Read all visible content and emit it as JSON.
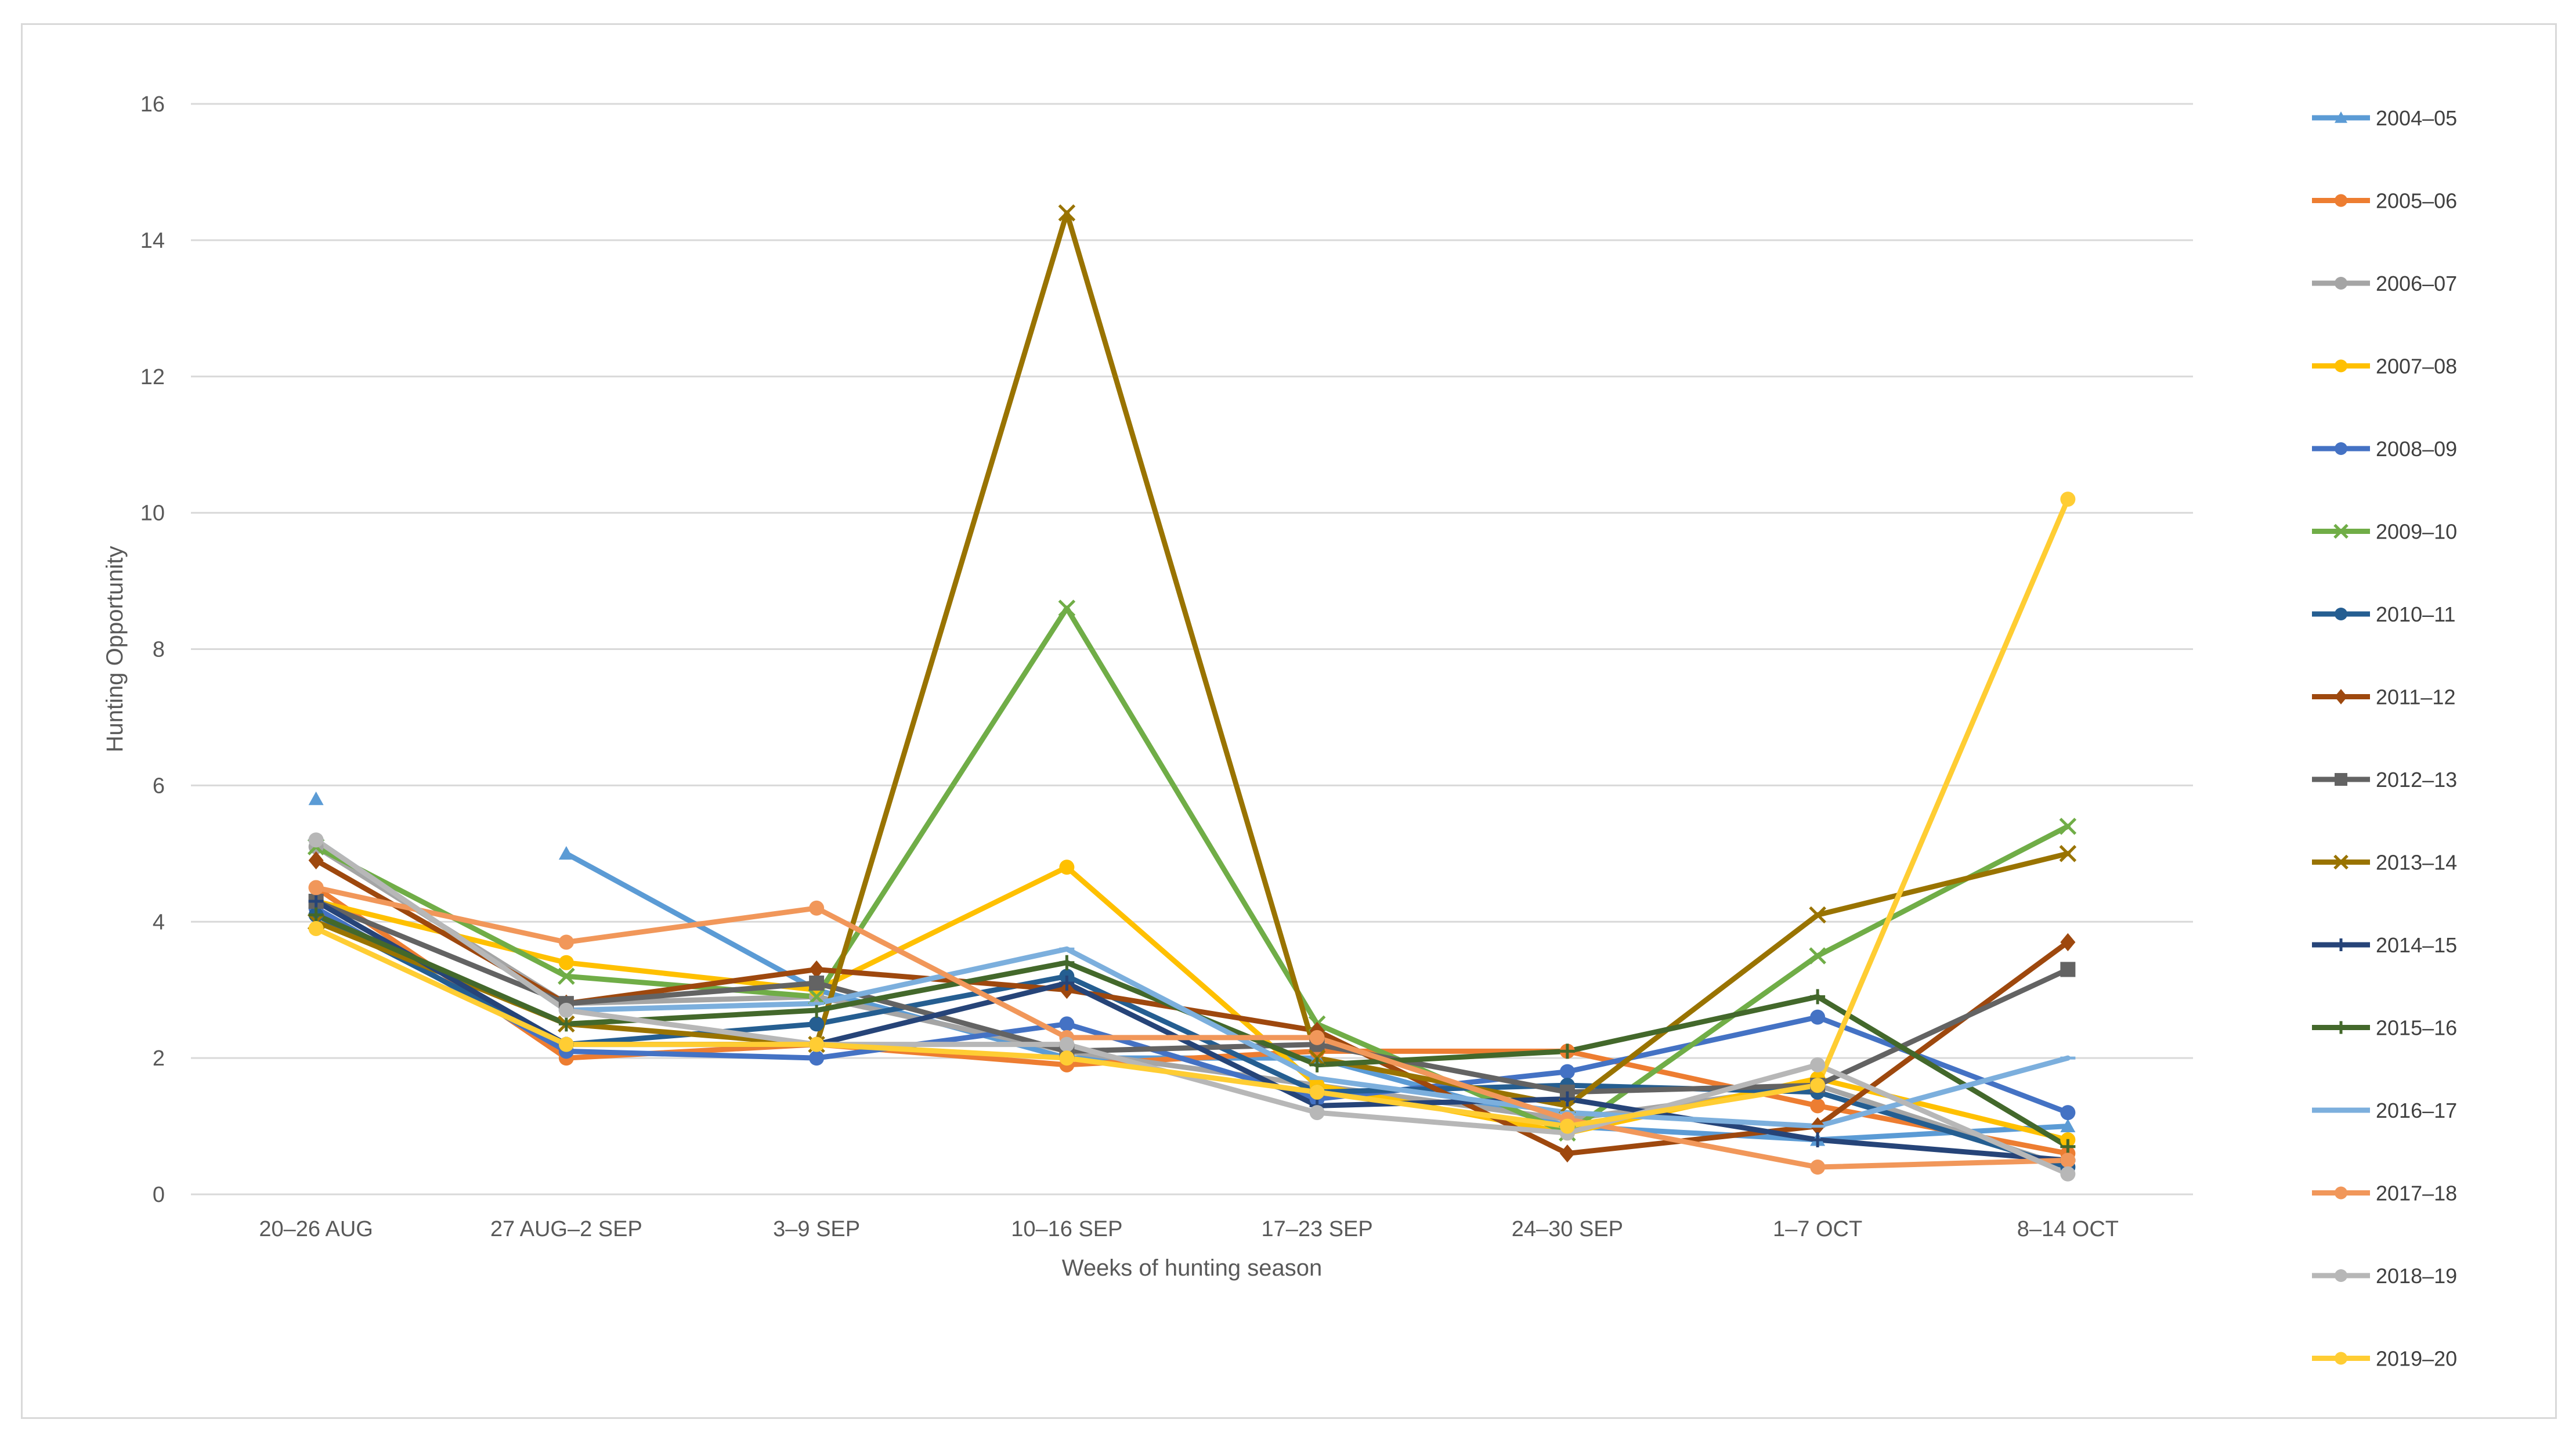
{
  "chart_data": {
    "type": "line",
    "title": "",
    "xlabel": "Weeks of hunting season",
    "ylabel": "Hunting Opportunity",
    "ylim": [
      0,
      16
    ],
    "yticks": [
      0,
      2,
      4,
      6,
      8,
      10,
      12,
      14,
      16
    ],
    "grid": true,
    "legend_position": "right",
    "categories": [
      "20–26 AUG",
      "27 AUG–2 SEP",
      "3–9 SEP",
      "10–16 SEP",
      "17–23 SEP",
      "24–30 SEP",
      "1–7 OCT",
      "8–14 OCT"
    ],
    "series": [
      {
        "name": "2004–05",
        "color": "#5b9bd5",
        "marker": "triangle",
        "values": [
          5.8,
          null,
          3.0,
          2.0,
          2.0,
          1.0,
          0.8,
          1.0
        ],
        "extra_point": {
          "index": 1,
          "value": 5.0
        }
      },
      {
        "name": "2005–06",
        "color": "#ed7d31",
        "marker": "circle",
        "values": [
          4.5,
          2.0,
          2.2,
          1.9,
          2.1,
          2.1,
          1.3,
          0.6
        ]
      },
      {
        "name": "2006–07",
        "color": "#a5a5a5",
        "marker": "circle",
        "values": [
          5.1,
          2.8,
          2.9,
          2.1,
          1.6,
          1.1,
          1.6,
          0.4
        ]
      },
      {
        "name": "2007–08",
        "color": "#ffc000",
        "marker": "circle",
        "values": [
          4.3,
          3.4,
          3.0,
          4.8,
          1.6,
          0.9,
          1.7,
          0.8
        ]
      },
      {
        "name": "2008–09",
        "color": "#4472c4",
        "marker": "circle",
        "values": [
          4.2,
          2.1,
          2.0,
          2.5,
          1.4,
          1.8,
          2.6,
          1.2
        ]
      },
      {
        "name": "2009–10",
        "color": "#70ad47",
        "marker": "x",
        "values": [
          5.1,
          3.2,
          2.9,
          8.6,
          2.5,
          0.9,
          3.5,
          5.4
        ]
      },
      {
        "name": "2010–11",
        "color": "#255e91",
        "marker": "circle",
        "values": [
          4.1,
          2.2,
          2.5,
          3.2,
          1.5,
          1.6,
          1.5,
          0.4
        ]
      },
      {
        "name": "2011–12",
        "color": "#9e480e",
        "marker": "diamond",
        "values": [
          4.9,
          2.8,
          3.3,
          3.0,
          2.4,
          0.6,
          1.0,
          3.7
        ]
      },
      {
        "name": "2012–13",
        "color": "#636363",
        "marker": "square",
        "values": [
          4.3,
          2.8,
          3.1,
          2.1,
          2.2,
          1.5,
          1.6,
          3.3
        ]
      },
      {
        "name": "2013–14",
        "color": "#997300",
        "marker": "x",
        "values": [
          4.0,
          2.5,
          2.2,
          14.4,
          2.0,
          1.3,
          4.1,
          5.0
        ]
      },
      {
        "name": "2014–15",
        "color": "#264478",
        "marker": "plus",
        "values": [
          4.3,
          2.2,
          2.2,
          3.1,
          1.3,
          1.4,
          0.8,
          0.5
        ]
      },
      {
        "name": "2015–16",
        "color": "#43682b",
        "marker": "plus",
        "values": [
          4.1,
          2.5,
          2.7,
          3.4,
          1.9,
          2.1,
          2.9,
          0.7
        ]
      },
      {
        "name": "2016–17",
        "color": "#7cafdd",
        "marker": "line",
        "values": [
          5.2,
          2.7,
          2.8,
          3.6,
          1.7,
          1.2,
          1.0,
          2.0
        ]
      },
      {
        "name": "2017–18",
        "color": "#f1975a",
        "marker": "circle",
        "values": [
          4.5,
          3.7,
          4.2,
          2.3,
          2.3,
          1.1,
          0.4,
          0.5
        ]
      },
      {
        "name": "2018–19",
        "color": "#b7b7b7",
        "marker": "circle",
        "values": [
          5.2,
          2.7,
          2.2,
          2.2,
          1.2,
          0.9,
          1.9,
          0.3
        ]
      },
      {
        "name": "2019–20",
        "color": "#ffcd33",
        "marker": "circle",
        "values": [
          3.9,
          2.2,
          2.2,
          2.0,
          1.5,
          1.0,
          1.6,
          10.2
        ]
      }
    ]
  }
}
